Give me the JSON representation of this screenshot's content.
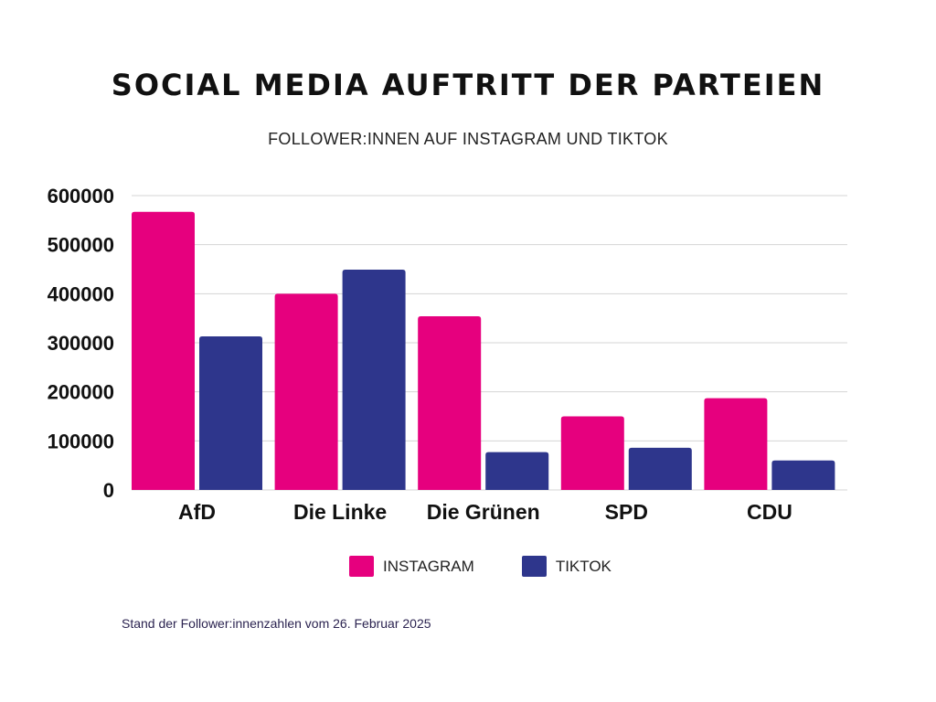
{
  "title": "SOCIAL MEDIA AUFTRITT DER PARTEIEN",
  "subtitle": "FOLLOWER:INNEN AUF INSTAGRAM UND TIKTOK",
  "footnote": "Stand der Follower:innenzahlen vom 26. Februar 2025",
  "chart_data": {
    "type": "bar",
    "title": "SOCIAL MEDIA AUFTRITT DER PARTEIEN",
    "subtitle": "FOLLOWER:INNEN AUF INSTAGRAM UND TIKTOK",
    "categories": [
      "AfD",
      "Die Linke",
      "Die Grünen",
      "SPD",
      "CDU"
    ],
    "series": [
      {
        "name": "INSTAGRAM",
        "color": "#e6007e",
        "values": [
          567000,
          400000,
          354000,
          150000,
          187000
        ]
      },
      {
        "name": "TIKTOK",
        "color": "#2e368c",
        "values": [
          313000,
          449000,
          77000,
          86000,
          60000
        ]
      }
    ],
    "yticks": [
      "0",
      "100000",
      "200000",
      "300000",
      "400000",
      "500000",
      "600000"
    ],
    "ylim": [
      0,
      600000
    ],
    "grid": true,
    "legend": "bottom-center"
  }
}
